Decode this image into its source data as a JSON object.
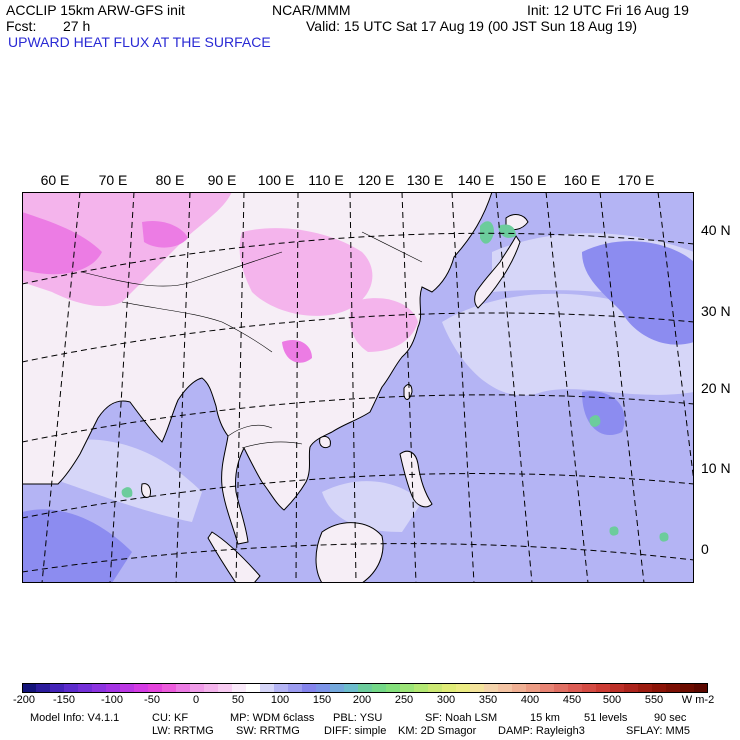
{
  "header": {
    "line1_left": "ACCLIP 15km ARW-GFS init",
    "line1_center": "NCAR/MMM",
    "line1_right": "Init: 12 UTC Fri 16 Aug 19",
    "line2_left_label": "Fcst:",
    "line2_left_value": "27 h",
    "line2_right": "Valid: 15 UTC Sat 17 Aug 19 (00 JST Sun 18 Aug 19)",
    "field_title": "UPWARD HEAT FLUX AT THE SURFACE"
  },
  "map": {
    "lon_labels": [
      "60 E",
      "70 E",
      "80 E",
      "90 E",
      "100 E",
      "110 E",
      "120 E",
      "130 E",
      "140 E",
      "150 E",
      "160 E",
      "170 E"
    ],
    "lat_labels": [
      "40 N",
      "30 N",
      "20 N",
      "10 N",
      "0"
    ],
    "colors": {
      "land_base": "#f6eef6",
      "ocean_base": "#b4b4f4",
      "ocean_light": "#d6d6f8",
      "pink": "#f4b4ec",
      "magenta": "#ec7ce4",
      "medium_blue": "#8c8cf0",
      "green": "#6ccc9c",
      "coast": "#000000"
    }
  },
  "colorbar": {
    "units": "W m-2",
    "tick_labels": [
      "-200",
      "-150",
      "-100",
      "-50",
      "0",
      "50",
      "100",
      "150",
      "200",
      "250",
      "300",
      "350",
      "400",
      "450",
      "500",
      "550"
    ],
    "colors": [
      "#14147a",
      "#2c1c9c",
      "#4424b8",
      "#5c2ccc",
      "#7430d8",
      "#8c34e0",
      "#a434e4",
      "#bc38e4",
      "#d43ce4",
      "#e444dc",
      "#ec5cdc",
      "#ec7ce4",
      "#f09ce8",
      "#f4b4ec",
      "#f8ccf2",
      "#faeafa",
      "#ffffff",
      "#d6d6f8",
      "#b4b4f4",
      "#9c9cf0",
      "#8484ec",
      "#7c94e8",
      "#74a8dc",
      "#6cbccc",
      "#6ccc9c",
      "#74d888",
      "#84e07c",
      "#9ce478",
      "#b4e874",
      "#cce874",
      "#e0ec78",
      "#ecec84",
      "#f4e49c",
      "#f4d4ac",
      "#f4c4a4",
      "#f0b094",
      "#ec9c84",
      "#e88474",
      "#e07064",
      "#dc5c54",
      "#d44c44",
      "#cc3c34",
      "#bc3028",
      "#ac241c",
      "#9c1c10",
      "#8c1408",
      "#7c1004",
      "#6c0c00",
      "#5c0800"
    ]
  },
  "footer": {
    "row1": [
      "Model Info: V4.1.1",
      "CU: KF",
      "MP: WDM 6class",
      "PBL: YSU",
      "SF: Noah LSM",
      "15 km",
      "51 levels",
      "90 sec"
    ],
    "row2": [
      "LW: RRTMG",
      "SW: RRTMG",
      "DIFF: simple",
      "KM: 2D Smagor",
      "DAMP: Rayleigh3",
      "SFLAY: MM5"
    ]
  }
}
